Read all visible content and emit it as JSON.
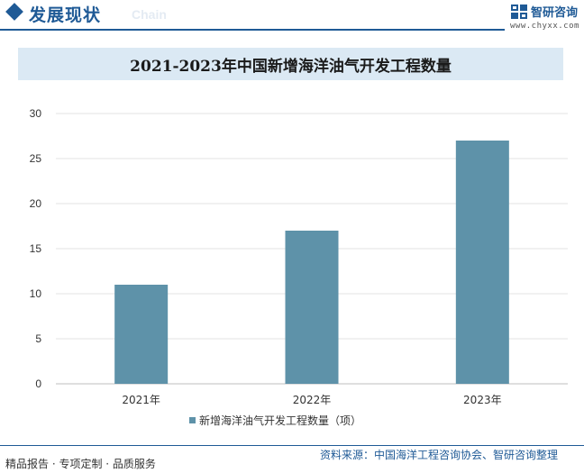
{
  "header": {
    "section_title": "发展现状",
    "section_subtitle": "Chain",
    "brand_name": "智研咨询",
    "brand_url": "www.chyxx.com",
    "accent_color": "#1f5a96"
  },
  "chart_data": {
    "type": "bar",
    "title": "2021-2023年中国新增海洋油气开发工程数量",
    "categories": [
      "2021年",
      "2022年",
      "2023年"
    ],
    "series": [
      {
        "name": "新增海洋油气开发工程数量（项）",
        "values": [
          11,
          17,
          27
        ],
        "color": "#5e92a9"
      }
    ],
    "ylim": [
      0,
      30
    ],
    "yticks": [
      "0",
      "5",
      "10",
      "15",
      "20",
      "25",
      "30"
    ],
    "grid": true,
    "legend_position": "bottom"
  },
  "footer": {
    "left_text": "精品报告 · 专项定制 · 品质服务",
    "source_text": "资料来源：中国海洋工程咨询协会、智研咨询整理"
  }
}
